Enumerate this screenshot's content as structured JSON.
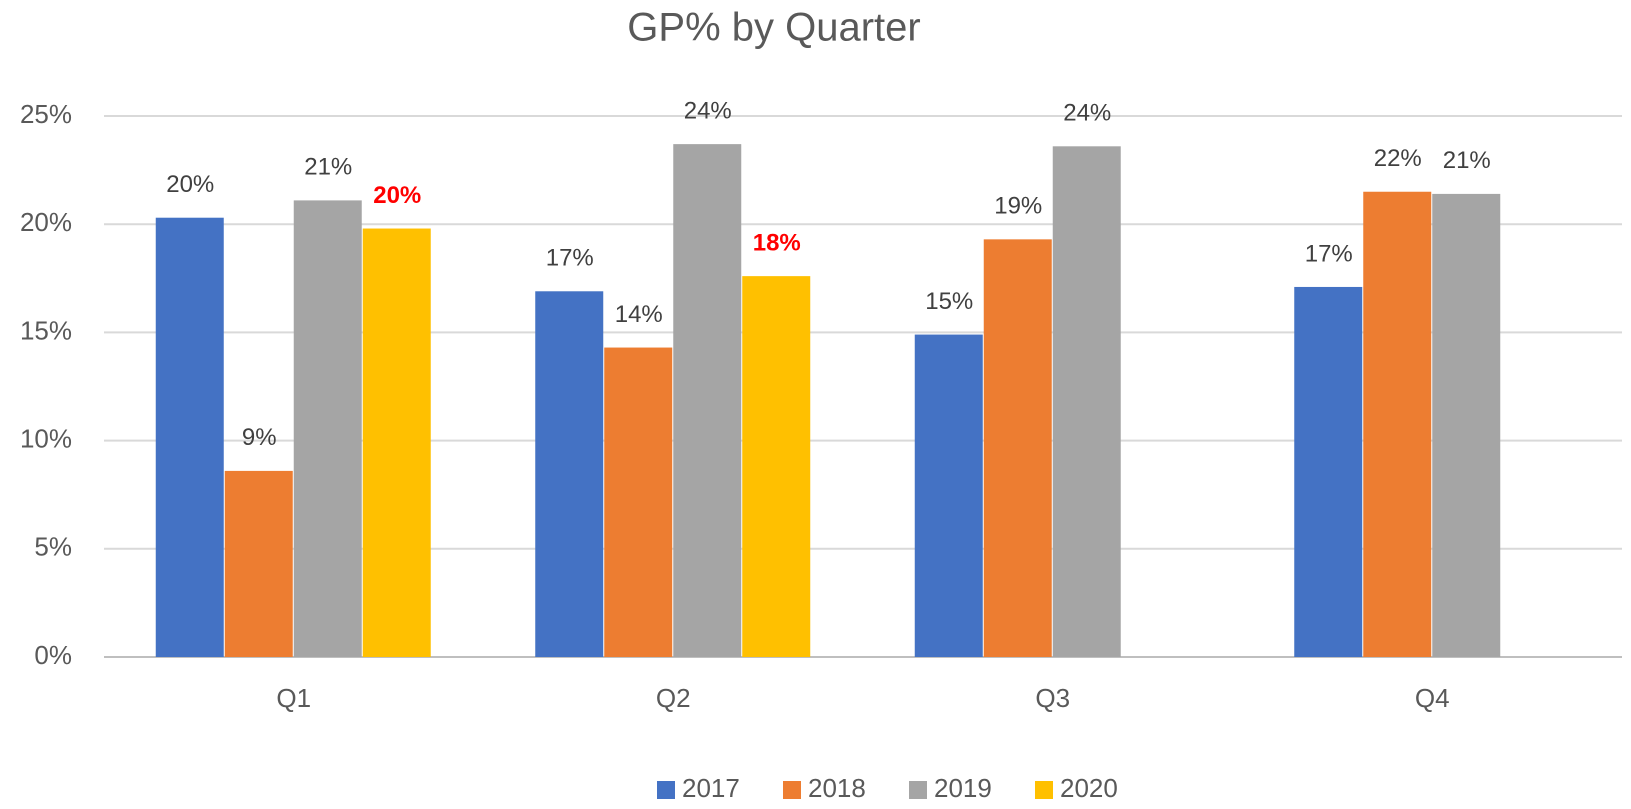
{
  "chart_data": {
    "type": "bar",
    "title": "GP% by Quarter",
    "categories": [
      "Q1",
      "Q2",
      "Q3",
      "Q4"
    ],
    "series": [
      {
        "name": "2017",
        "color": "#4472c4",
        "values": [
          20.3,
          16.9,
          14.9,
          17.1
        ],
        "value_labels": [
          "20%",
          "17%",
          "15%",
          "17%"
        ]
      },
      {
        "name": "2018",
        "color": "#ed7d31",
        "values": [
          8.6,
          14.3,
          19.3,
          21.5
        ],
        "value_labels": [
          "9%",
          "14%",
          "19%",
          "22%"
        ]
      },
      {
        "name": "2019",
        "color": "#a5a5a5",
        "values": [
          21.1,
          23.7,
          23.6,
          21.4
        ],
        "value_labels": [
          "21%",
          "24%",
          "24%",
          "21%"
        ]
      },
      {
        "name": "2020",
        "color": "#ffc000",
        "values": [
          19.8,
          17.6,
          null,
          null
        ],
        "value_labels": [
          "20%",
          "18%",
          null,
          null
        ],
        "label_color": "#ff0000",
        "label_bold": true
      }
    ],
    "ylim": [
      0,
      25
    ],
    "yticks": [
      {
        "value": 0,
        "label": "0%"
      },
      {
        "value": 5,
        "label": "5%"
      },
      {
        "value": 10,
        "label": "10%"
      },
      {
        "value": 15,
        "label": "15%"
      },
      {
        "value": 20,
        "label": "20%"
      },
      {
        "value": 25,
        "label": "25%"
      }
    ],
    "grid": true,
    "legend": "bottom"
  }
}
